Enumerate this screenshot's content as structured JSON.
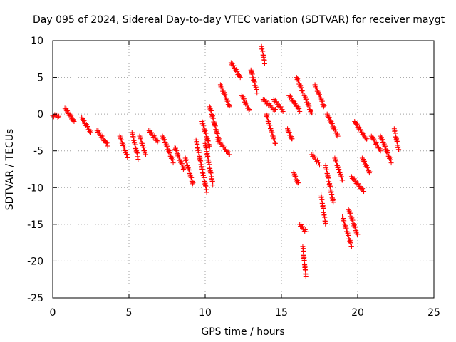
{
  "chart_data": {
    "type": "scatter",
    "title": "Day 095 of 2024, Sidereal Day-to-day VTEC variation (SDTVAR) for receiver maygt",
    "xlabel": "GPS time / hours",
    "ylabel": "SDTVAR / TECUs",
    "xlim": [
      0,
      25
    ],
    "ylim": [
      -25,
      10
    ],
    "xticks": [
      0,
      5,
      10,
      15,
      20,
      25
    ],
    "yticks": [
      -25,
      -20,
      -15,
      -10,
      -5,
      0,
      5,
      10
    ],
    "grid": true,
    "marker": "+",
    "series_color": "#ff0000",
    "tracks": [
      {
        "x": [
          0.0,
          0.4
        ],
        "y": [
          -0.2,
          -0.3
        ]
      },
      {
        "x": [
          0.8,
          1.4
        ],
        "y": [
          0.8,
          -1.0
        ]
      },
      {
        "x": [
          1.9,
          2.5
        ],
        "y": [
          -0.5,
          -2.5
        ]
      },
      {
        "x": [
          2.9,
          3.6
        ],
        "y": [
          -2.2,
          -4.2
        ]
      },
      {
        "x": [
          4.4,
          4.9
        ],
        "y": [
          -3.0,
          -5.8
        ]
      },
      {
        "x": [
          5.2,
          5.6
        ],
        "y": [
          -2.5,
          -6.0
        ]
      },
      {
        "x": [
          5.7,
          6.1
        ],
        "y": [
          -3.0,
          -5.5
        ]
      },
      {
        "x": [
          6.3,
          6.9
        ],
        "y": [
          -2.2,
          -3.8
        ]
      },
      {
        "x": [
          7.2,
          7.9
        ],
        "y": [
          -3.0,
          -6.5
        ]
      },
      {
        "x": [
          8.0,
          8.6
        ],
        "y": [
          -4.5,
          -7.5
        ]
      },
      {
        "x": [
          8.7,
          9.2
        ],
        "y": [
          -6.0,
          -9.5
        ]
      },
      {
        "x": [
          9.4,
          10.1
        ],
        "y": [
          -3.5,
          -10.5
        ]
      },
      {
        "x": [
          9.8,
          10.3
        ],
        "y": [
          -1.0,
          -4.5
        ]
      },
      {
        "x": [
          10.0,
          10.5
        ],
        "y": [
          -4.0,
          -9.5
        ]
      },
      {
        "x": [
          10.3,
          10.9
        ],
        "y": [
          1.0,
          -3.5
        ]
      },
      {
        "x": [
          10.8,
          11.6
        ],
        "y": [
          -3.5,
          -5.5
        ]
      },
      {
        "x": [
          11.0,
          11.6
        ],
        "y": [
          4.0,
          1.0
        ]
      },
      {
        "x": [
          11.7,
          12.3
        ],
        "y": [
          7.0,
          5.0
        ]
      },
      {
        "x": [
          12.4,
          12.9
        ],
        "y": [
          2.5,
          0.5
        ]
      },
      {
        "x": [
          13.0,
          13.4
        ],
        "y": [
          6.0,
          3.0
        ]
      },
      {
        "x": [
          13.7,
          13.9
        ],
        "y": [
          9.2,
          7.0
        ]
      },
      {
        "x": [
          13.8,
          14.6
        ],
        "y": [
          2.0,
          0.5
        ]
      },
      {
        "x": [
          14.0,
          14.6
        ],
        "y": [
          0.0,
          -4.0
        ]
      },
      {
        "x": [
          14.5,
          15.1
        ],
        "y": [
          2.0,
          0.5
        ]
      },
      {
        "x": [
          15.4,
          15.7
        ],
        "y": [
          -2.0,
          -3.5
        ]
      },
      {
        "x": [
          15.5,
          16.2
        ],
        "y": [
          2.5,
          0.5
        ]
      },
      {
        "x": [
          16.0,
          16.4
        ],
        "y": [
          5.0,
          3.0
        ]
      },
      {
        "x": [
          16.2,
          16.6
        ],
        "y": [
          -15.0,
          -16.0
        ]
      },
      {
        "x": [
          16.4,
          16.6
        ],
        "y": [
          -18.0,
          -22.0
        ]
      },
      {
        "x": [
          15.8,
          16.1
        ],
        "y": [
          -8.0,
          -9.5
        ]
      },
      {
        "x": [
          16.5,
          17.0
        ],
        "y": [
          2.5,
          0.0
        ]
      },
      {
        "x": [
          17.2,
          17.8
        ],
        "y": [
          4.0,
          1.0
        ]
      },
      {
        "x": [
          17.0,
          17.5
        ],
        "y": [
          -5.5,
          -6.8
        ]
      },
      {
        "x": [
          17.6,
          17.9
        ],
        "y": [
          -11.0,
          -15.0
        ]
      },
      {
        "x": [
          17.9,
          18.4
        ],
        "y": [
          -7.0,
          -12.0
        ]
      },
      {
        "x": [
          18.5,
          19.0
        ],
        "y": [
          -6.0,
          -9.0
        ]
      },
      {
        "x": [
          18.0,
          18.7
        ],
        "y": [
          0.0,
          -3.0
        ]
      },
      {
        "x": [
          19.0,
          19.6
        ],
        "y": [
          -14.0,
          -18.0
        ]
      },
      {
        "x": [
          19.4,
          20.0
        ],
        "y": [
          -13.0,
          -16.5
        ]
      },
      {
        "x": [
          19.6,
          20.4
        ],
        "y": [
          -8.5,
          -10.5
        ]
      },
      {
        "x": [
          19.8,
          20.6
        ],
        "y": [
          -1.0,
          -3.5
        ]
      },
      {
        "x": [
          20.3,
          20.8
        ],
        "y": [
          -6.0,
          -8.0
        ]
      },
      {
        "x": [
          20.9,
          21.5
        ],
        "y": [
          -3.0,
          -5.0
        ]
      },
      {
        "x": [
          21.5,
          22.2
        ],
        "y": [
          -3.0,
          -6.5
        ]
      },
      {
        "x": [
          22.4,
          22.7
        ],
        "y": [
          -2.0,
          -5.0
        ]
      }
    ]
  }
}
